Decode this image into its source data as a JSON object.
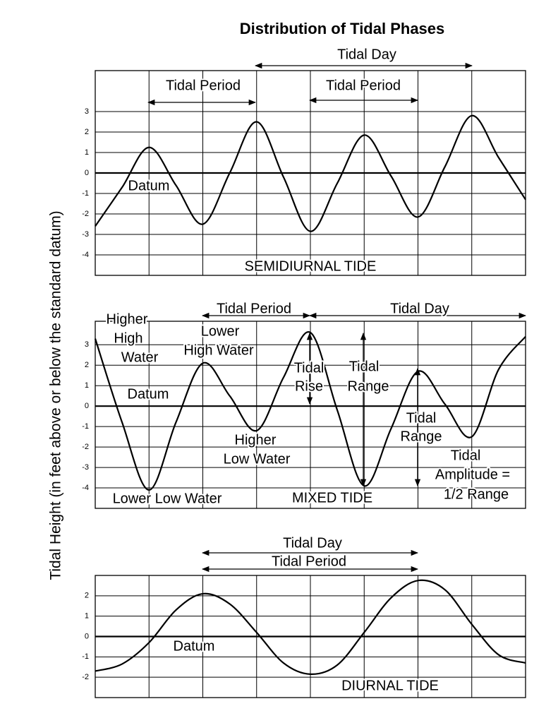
{
  "title": "Distribution of Tidal Phases",
  "ylabel": "Tidal Height (in feet above or below the standard datum)",
  "chart_data": [
    {
      "type": "line",
      "color": "#000000",
      "xlim": [
        0,
        8
      ],
      "ylim": [
        -5,
        5
      ],
      "yticks": [
        3,
        2,
        1,
        0,
        -1,
        -2,
        -3,
        -4
      ],
      "x": [
        0,
        0.5,
        1,
        1.5,
        2,
        2.5,
        3,
        3.5,
        4,
        4.5,
        5,
        5.5,
        6,
        6.5,
        7,
        7.5,
        8
      ],
      "values": [
        -2.6,
        -0.7,
        1.25,
        -0.6,
        -2.5,
        0,
        2.5,
        -0.2,
        -2.85,
        -0.5,
        1.85,
        -0.15,
        -2.15,
        0.3,
        2.8,
        0.75,
        -1.3
      ],
      "annotations": [
        "Tidal Day",
        "Tidal Period",
        "Tidal Period",
        "Datum",
        "SEMIDIURNAL TIDE"
      ]
    },
    {
      "type": "line",
      "color": "#000000",
      "xlim": [
        0,
        8
      ],
      "ylim": [
        -5,
        4.15
      ],
      "yticks": [
        3,
        2,
        1,
        0,
        -1,
        -2,
        -3,
        -4
      ],
      "x": [
        0,
        0.5,
        1,
        1.5,
        2,
        2.5,
        3,
        3.5,
        4,
        4.5,
        5,
        5.5,
        6,
        6.5,
        7,
        7.5,
        8
      ],
      "values": [
        3.3,
        -0.8,
        -4.1,
        -0.8,
        2.1,
        0.5,
        -1.2,
        1.4,
        3.6,
        -0.2,
        -3.9,
        -1.1,
        1.7,
        0.1,
        -1.5,
        1.8,
        3.4
      ],
      "annotations": [
        "Tidal Period",
        "Tidal Day",
        "Higher",
        "High",
        "Water",
        "Lower",
        "High Water",
        "Datum",
        "Tidal",
        "Rise",
        "Tidal",
        "Range",
        "Tidal",
        "Range",
        "Higher",
        "Low Water",
        "Tidal",
        "Amplitude =",
        "1/2 Range",
        "Lower Low Water",
        "MIXED TIDE"
      ]
    },
    {
      "type": "line",
      "color": "#000000",
      "xlim": [
        0,
        8
      ],
      "ylim": [
        -3,
        3
      ],
      "yticks": [
        2,
        1,
        0,
        -1,
        -2
      ],
      "x": [
        0,
        0.5,
        1,
        1.5,
        2,
        2.5,
        3,
        3.5,
        4,
        4.5,
        5,
        5.5,
        6,
        6.5,
        7,
        7.5,
        8
      ],
      "values": [
        -1.7,
        -1.35,
        -0.3,
        1.3,
        2.1,
        1.6,
        0.2,
        -1.3,
        -1.85,
        -1.4,
        0.2,
        1.9,
        2.75,
        2.3,
        0.6,
        -0.9,
        -1.3
      ],
      "annotations": [
        "Tidal Day",
        "Tidal Period",
        "Datum",
        "DIURNAL TIDE"
      ]
    }
  ]
}
